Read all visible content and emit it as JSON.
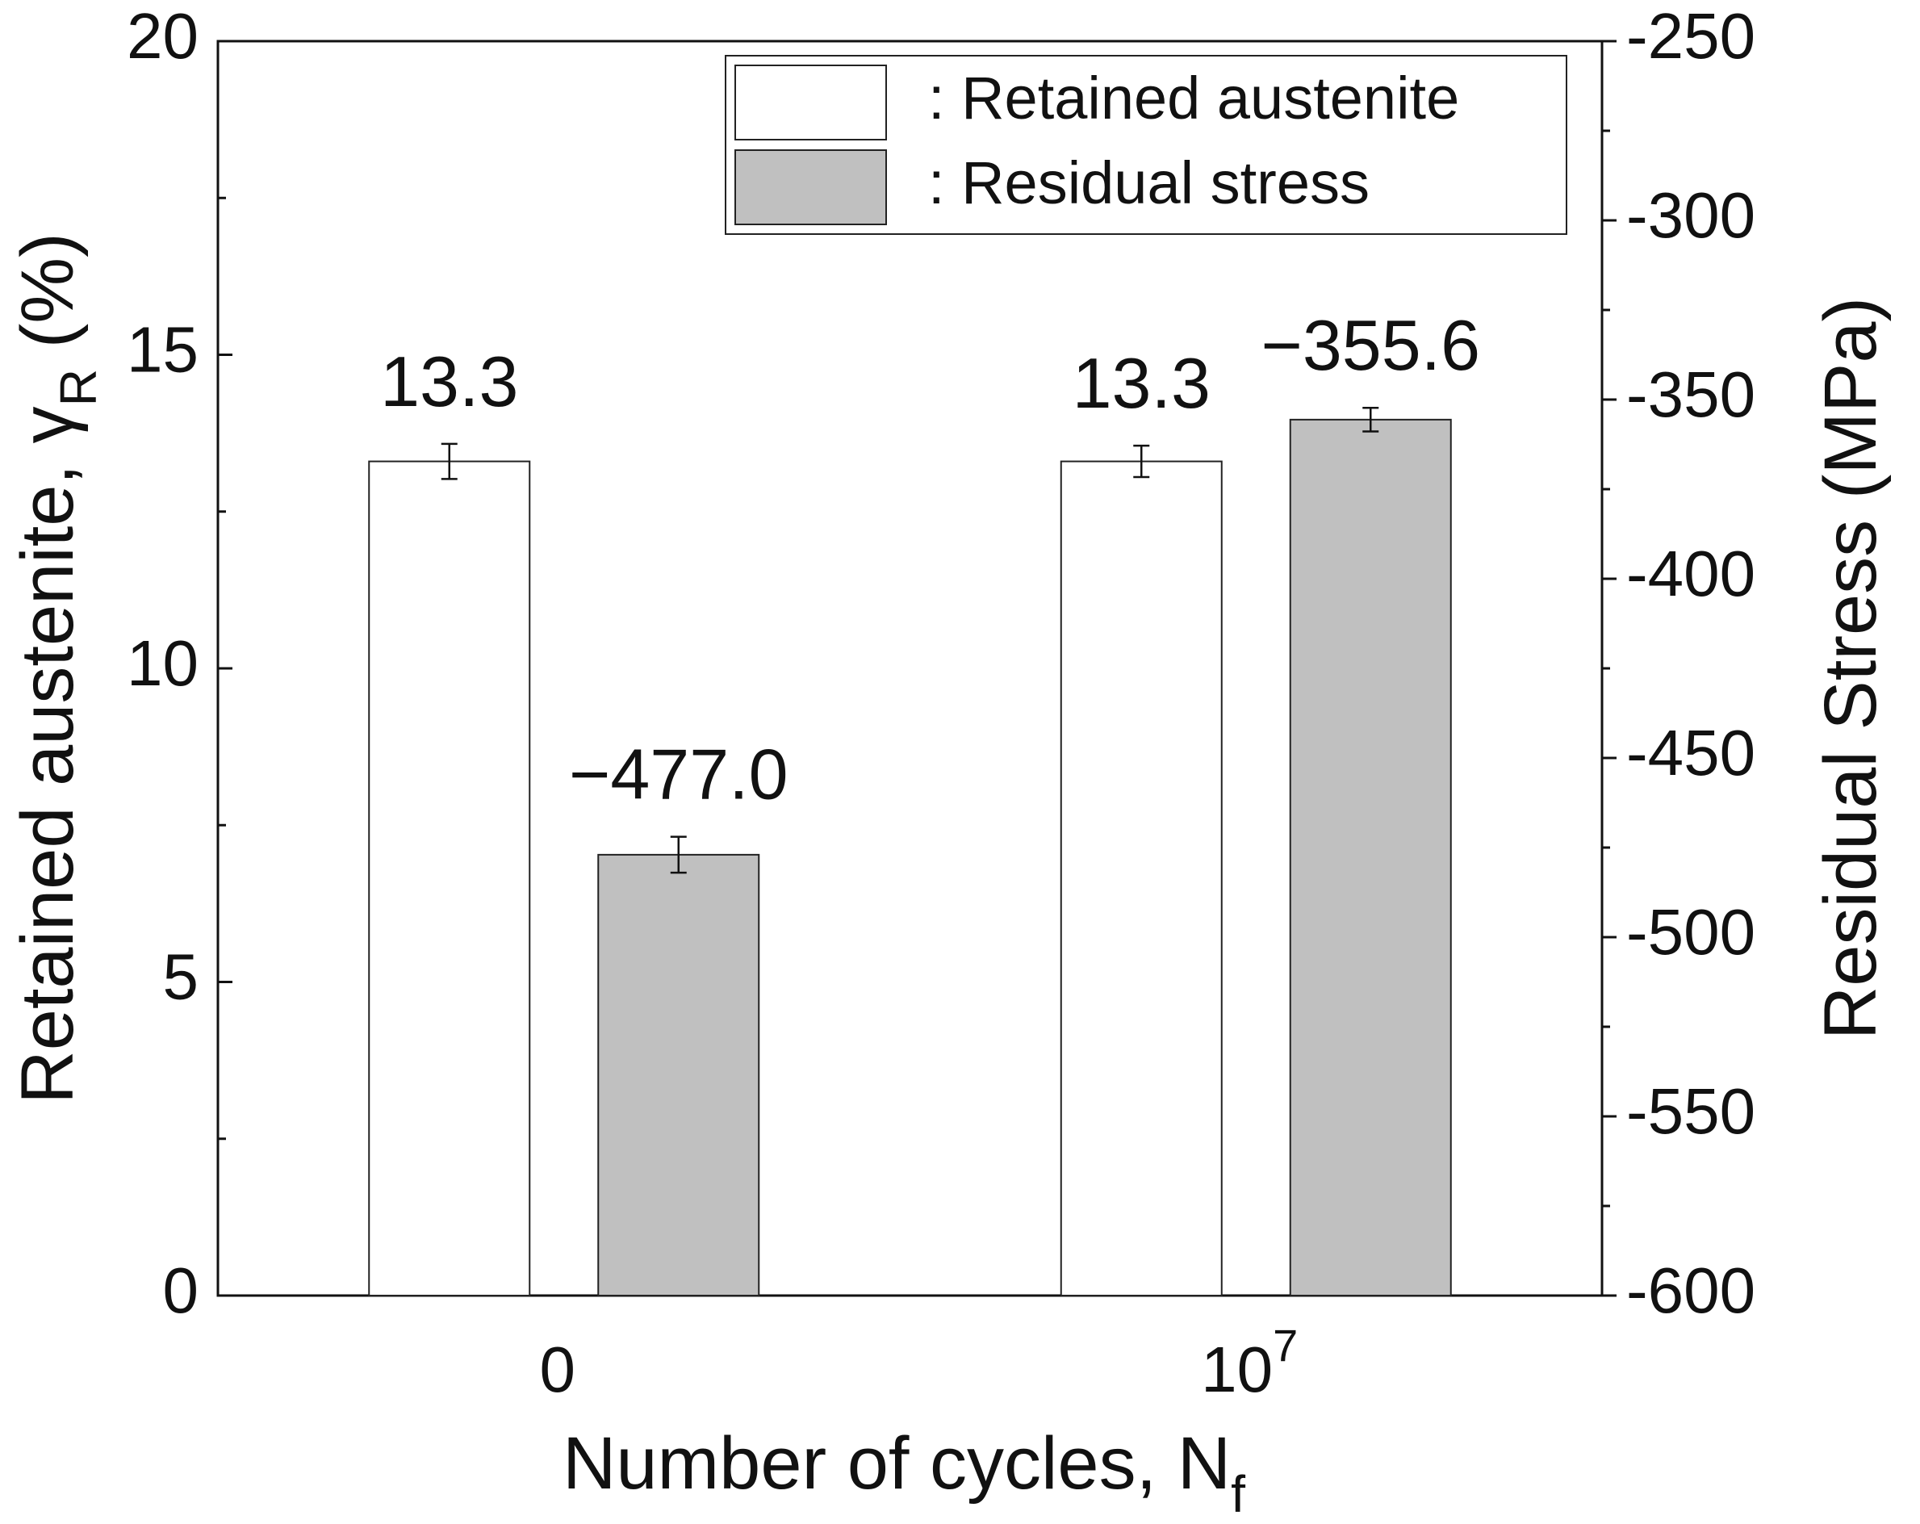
{
  "chart_data": {
    "type": "bar",
    "categories": [
      "0",
      "10^7"
    ],
    "x_label": "Number of cycles, N_f",
    "y_label": "Retained austenite, γ_R (%)",
    "y2_label": "Residual Stress (MPa)",
    "ylim": [
      0,
      20
    ],
    "yticks": [
      0,
      5,
      10,
      15,
      20
    ],
    "yticks_minor": [
      2.5,
      7.5,
      12.5,
      17.5
    ],
    "y2lim": [
      -600,
      -250
    ],
    "y2ticks": [
      -600,
      -550,
      -500,
      -450,
      -400,
      -350,
      -300,
      -250
    ],
    "y2ticks_minor": [
      -575,
      -525,
      -475,
      -425,
      -375,
      -325,
      -275
    ],
    "series": [
      {
        "name": ": Retained austenite",
        "color": "#ffffff",
        "values": [
          13.3,
          13.3
        ],
        "errors": [
          0.28,
          0.25
        ]
      },
      {
        "name": ": Residual stress",
        "color": "#c0c0c0",
        "axis": "y2",
        "values": [
          -477.0,
          -355.6
        ],
        "errors": [
          5,
          3.3
        ],
        "value_labels": [
          "−477.0",
          "−355.6"
        ]
      }
    ]
  }
}
